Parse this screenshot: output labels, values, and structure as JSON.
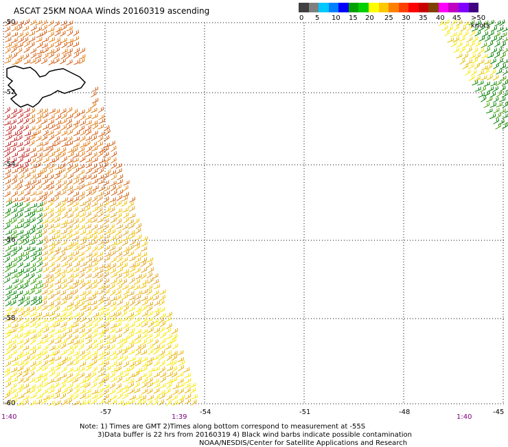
{
  "title": "ASCAT 25KM NOAA Winds 20160319 ascending",
  "colorbar": {
    "colors": [
      "#404040",
      "#7f7f7f",
      "#00c8ff",
      "#0080ff",
      "#0000ff",
      "#00a000",
      "#00d000",
      "#ffff00",
      "#ffc800",
      "#ff8000",
      "#ff4000",
      "#ff0000",
      "#c80000",
      "#804000",
      "#ff00ff",
      "#c000c0",
      "#8000ff",
      "#400080"
    ],
    "labels": [
      "0",
      "5",
      "10",
      "15",
      "20",
      "25",
      "30",
      "35",
      "40",
      "45",
      ">50 knots"
    ]
  },
  "lat_labels": [
    "-50",
    "-52",
    "-54",
    "-56",
    "-58",
    "-60"
  ],
  "lon_labels": [
    "-57",
    "-54",
    "-51",
    "-48",
    "-45"
  ],
  "time_labels": [
    "1:40",
    "1:39",
    "1:40"
  ],
  "notes": {
    "line1": "Note: 1) Times are GMT 2)Times along bottom correspond to measurement at -55S",
    "line2": "3)Data buffer is 22 hrs from 20160319 4) Black wind barbs indicate possible contamination",
    "line3": "NOAA/NESDIS/Center for Satellite Applications and Research"
  }
}
